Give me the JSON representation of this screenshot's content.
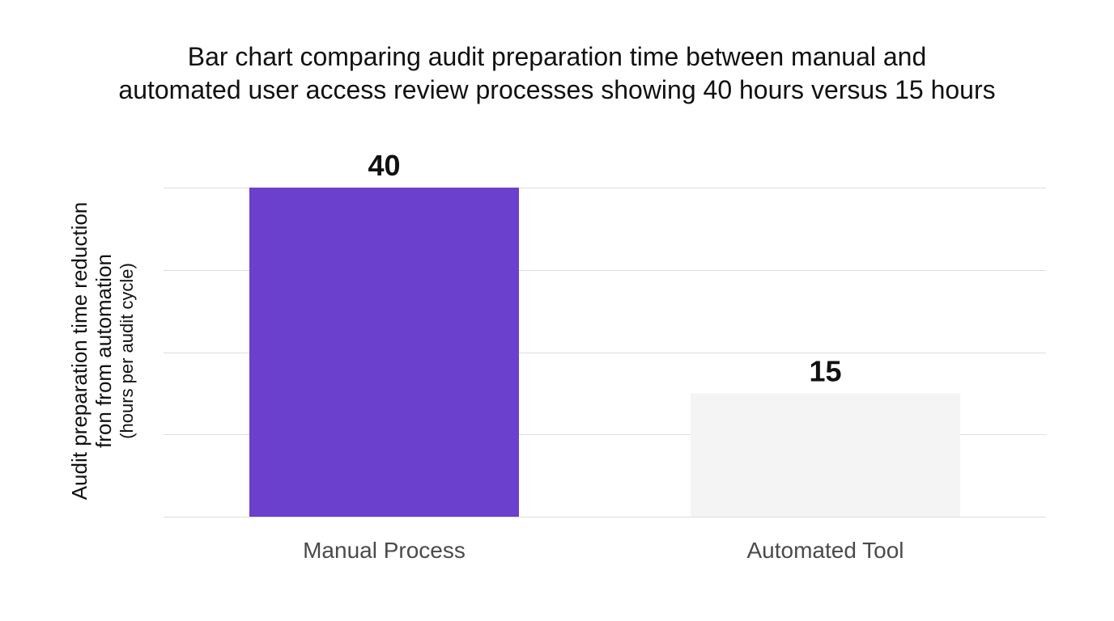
{
  "chart_data": {
    "type": "bar",
    "title_lines": [
      "Bar chart comparing audit preparation time between manual and",
      "automated user access review processes showing 40 hours versus 15 hours"
    ],
    "ylabel_lines": [
      "Audit preparation time reduction",
      "fron from automation",
      "(hours per audit cycle)"
    ],
    "categories": [
      "Manual Process",
      "Automated Tool"
    ],
    "values": [
      40,
      15
    ],
    "data_labels": [
      "40",
      "15"
    ],
    "bar_colors": [
      "#6a40cc",
      "#f4f4f4"
    ],
    "ylim": [
      0,
      40
    ],
    "grid": true,
    "gridline_values": [
      0,
      10,
      20,
      30,
      40
    ]
  }
}
